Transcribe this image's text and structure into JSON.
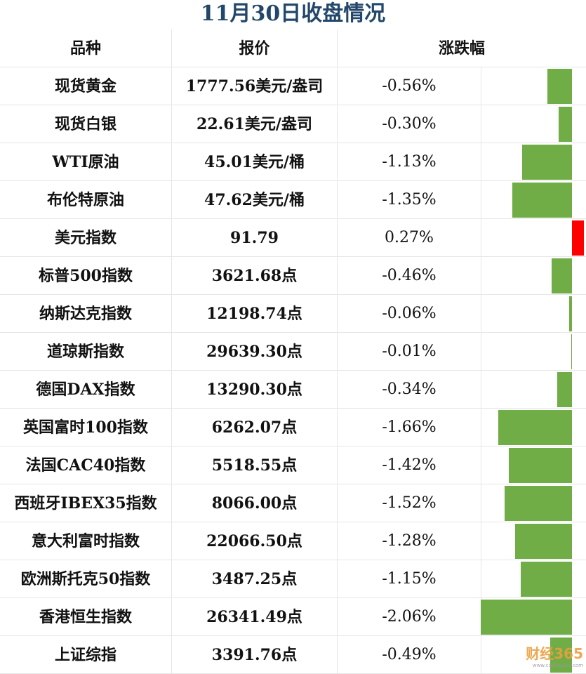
{
  "title": "11月30日收盘情况",
  "headers": {
    "name": "品种",
    "price": "报价",
    "change": "涨跌幅"
  },
  "colors": {
    "down": "#70ad47",
    "up": "#ff0000",
    "title": "#23476a"
  },
  "rows": [
    {
      "name": "现货黄金",
      "price": "1777.56美元/盎司",
      "change": "-0.56%",
      "change_value": -0.56
    },
    {
      "name": "现货白银",
      "price": "22.61美元/盎司",
      "change": "-0.30%",
      "change_value": -0.3
    },
    {
      "name": "WTI原油",
      "price": "45.01美元/桶",
      "change": "-1.13%",
      "change_value": -1.13
    },
    {
      "name": "布伦特原油",
      "price": "47.62美元/桶",
      "change": "-1.35%",
      "change_value": -1.35
    },
    {
      "name": "美元指数",
      "price": "91.79",
      "change": "0.27%",
      "change_value": 0.27
    },
    {
      "name": "标普500指数",
      "price": "3621.68点",
      "change": "-0.46%",
      "change_value": -0.46
    },
    {
      "name": "纳斯达克指数",
      "price": "12198.74点",
      "change": "-0.06%",
      "change_value": -0.06
    },
    {
      "name": "道琼斯指数",
      "price": "29639.30点",
      "change": "-0.01%",
      "change_value": -0.01
    },
    {
      "name": "德国DAX指数",
      "price": "13290.30点",
      "change": "-0.34%",
      "change_value": -0.34
    },
    {
      "name": "英国富时100指数",
      "price": "6262.07点",
      "change": "-1.66%",
      "change_value": -1.66
    },
    {
      "name": "法国CAC40指数",
      "price": "5518.55点",
      "change": "-1.42%",
      "change_value": -1.42
    },
    {
      "name": "西班牙IBEX35指数",
      "price": "8066.00点",
      "change": "-1.52%",
      "change_value": -1.52
    },
    {
      "name": "意大利富时指数",
      "price": "22066.50点",
      "change": "-1.28%",
      "change_value": -1.28
    },
    {
      "name": "欧洲斯托克50指数",
      "price": "3487.25点",
      "change": "-1.15%",
      "change_value": -1.15
    },
    {
      "name": "香港恒生指数",
      "price": "26341.49点",
      "change": "-2.06%",
      "change_value": -2.06
    },
    {
      "name": "上证综指",
      "price": "3391.76点",
      "change": "-0.49%",
      "change_value": -0.49
    }
  ],
  "watermark": {
    "brand": "财经365",
    "url": "www.caijing365.com"
  }
}
